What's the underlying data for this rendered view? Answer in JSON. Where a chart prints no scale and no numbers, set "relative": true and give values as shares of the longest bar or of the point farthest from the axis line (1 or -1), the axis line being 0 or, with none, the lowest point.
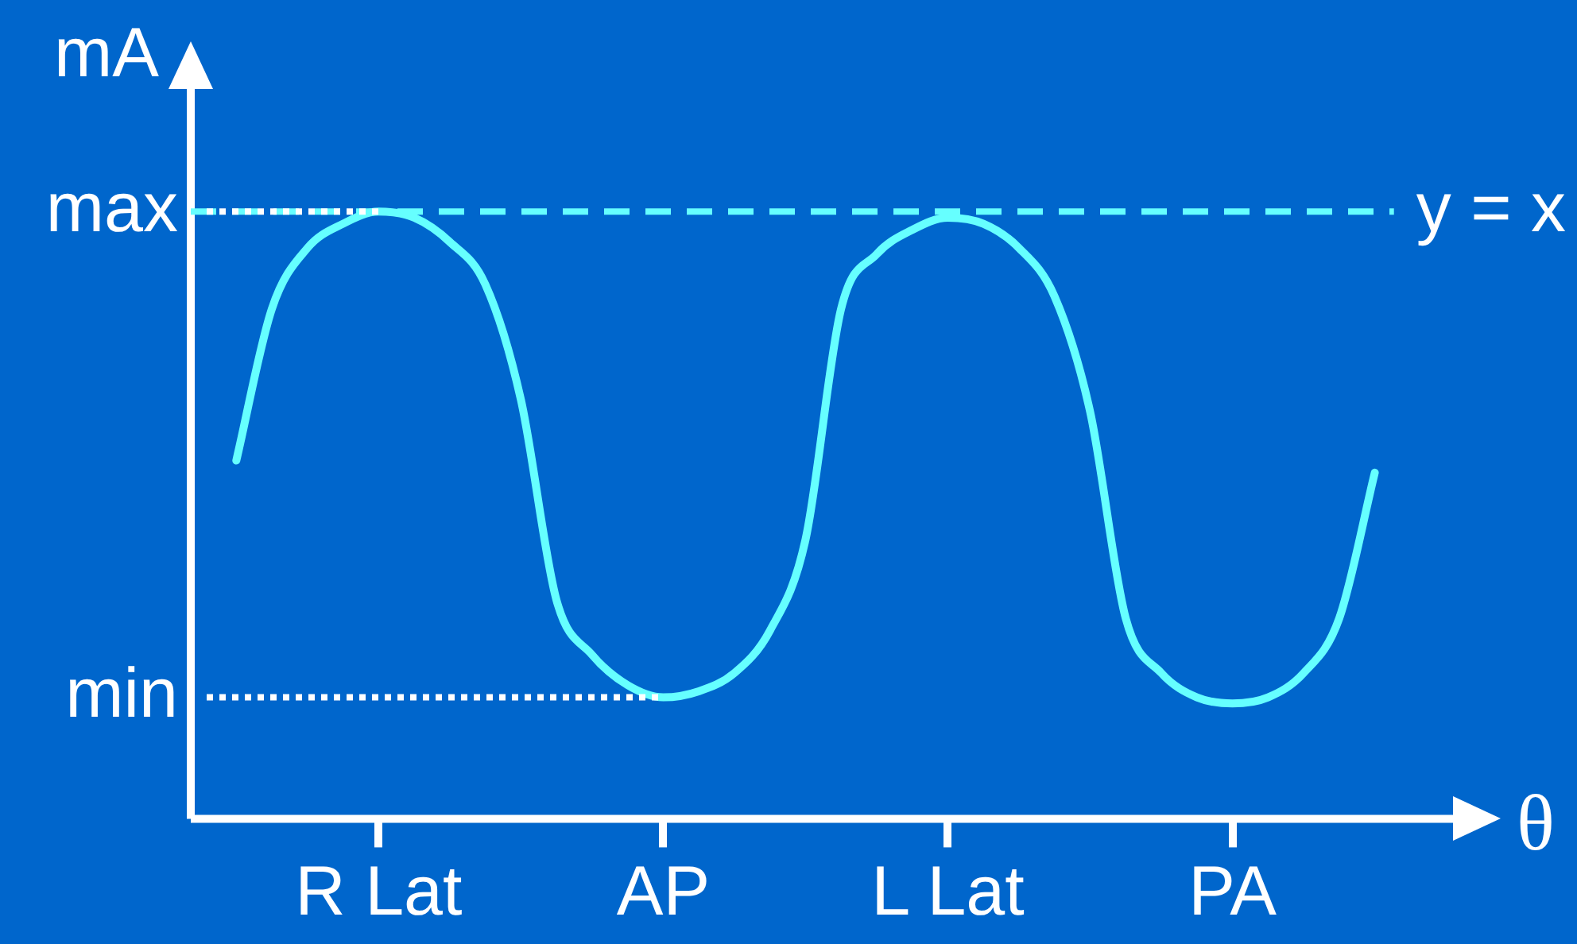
{
  "chart_data": {
    "type": "line",
    "xlabel": "θ",
    "ylabel": "mA",
    "relative": true,
    "marker": "none",
    "line_style": "solid",
    "categories": [
      null,
      null,
      null,
      null,
      "R Lat",
      null,
      null,
      null,
      null,
      null,
      null,
      null,
      "AP",
      null,
      null,
      null,
      null,
      null,
      null,
      null,
      "L Lat",
      null,
      null,
      null,
      null,
      null,
      null,
      null,
      "PA",
      null,
      null,
      null,
      null
    ],
    "series": [
      {
        "color": "#66ffff",
        "values": [
          0.59,
          0.84,
          0.94,
          0.98,
          1.0,
          0.99,
          0.95,
          0.88,
          0.69,
          0.36,
          0.27,
          0.22,
          0.2,
          0.21,
          0.24,
          0.31,
          0.46,
          0.84,
          0.93,
          0.97,
          0.99,
          0.98,
          0.94,
          0.86,
          0.67,
          0.33,
          0.24,
          0.2,
          0.19,
          0.2,
          0.24,
          0.33,
          0.57
        ]
      }
    ],
    "ref_lines": [
      {
        "axis": "y",
        "value": 1,
        "label": "y = x",
        "color": "#66ffff",
        "line_style": "dashed"
      }
    ],
    "annotations": [
      {
        "text": "max",
        "x": "R Lat",
        "y": 1.0
      },
      {
        "text": "min",
        "x": "AP",
        "y": 0.2
      }
    ]
  }
}
